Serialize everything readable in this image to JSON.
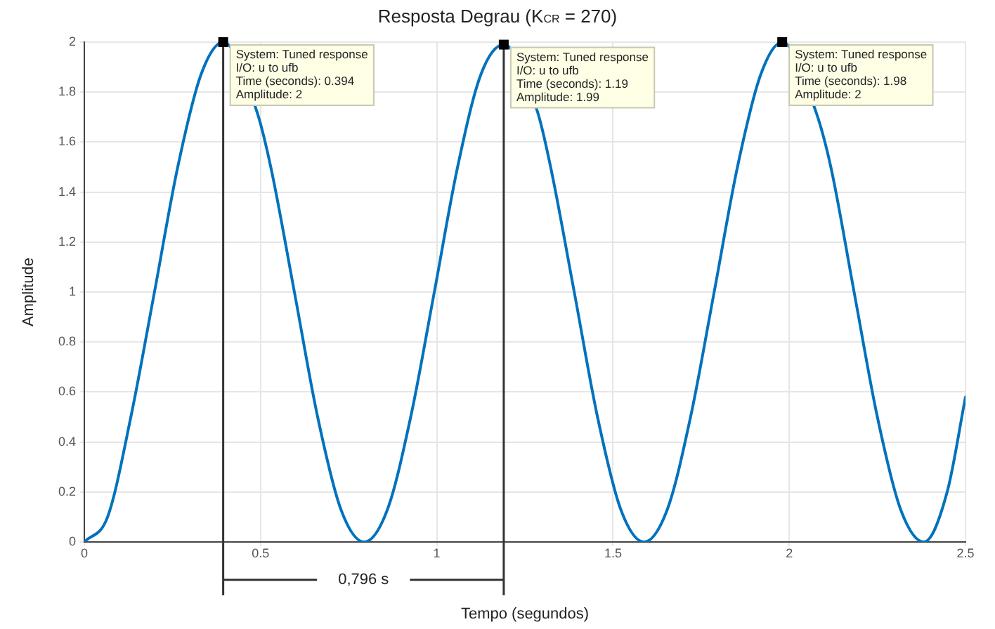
{
  "chart_data": {
    "type": "line",
    "title": "Resposta Degrau (K$_{CR}$ = 270)",
    "xlabel": "Tempo (segundos)",
    "ylabel": "Amplitude",
    "x": [
      0,
      0.066,
      0.132,
      0.199,
      0.265,
      0.331,
      0.394,
      0.49,
      0.529,
      0.596,
      0.662,
      0.728,
      0.794,
      0.86,
      0.926,
      0.993,
      1.059,
      1.125,
      1.19,
      1.286,
      1.323,
      1.39,
      1.456,
      1.522,
      1.588,
      1.654,
      1.72,
      1.787,
      1.853,
      1.919,
      1.98,
      2.076,
      2.118,
      2.184,
      2.25,
      2.316,
      2.382,
      2.448,
      2.5
    ],
    "series": [
      {
        "color": "#0072bd",
        "values": [
          0,
          0.1,
          0.5,
          1,
          1.5,
          1.87,
          2,
          1.72,
          1.5,
          1,
          0.5,
          0.13,
          0,
          0.13,
          0.5,
          1,
          1.5,
          1.87,
          1.99,
          1.72,
          1.5,
          1,
          0.5,
          0.13,
          0,
          0.13,
          0.5,
          1,
          1.5,
          1.87,
          2,
          1.72,
          1.5,
          1,
          0.5,
          0.13,
          0,
          0.2,
          0.58
        ]
      }
    ],
    "xlim": [
      0,
      2.5
    ],
    "xticks": [
      0,
      0.5,
      1,
      1.5,
      2,
      2.5
    ],
    "ylim": [
      0,
      2
    ],
    "yticks": [
      0,
      0.2,
      0.4,
      0.6,
      0.8,
      1,
      1.2,
      1.4,
      1.6,
      1.8,
      2
    ],
    "grid": true,
    "marker": "none",
    "line_style": "solid",
    "legend": false,
    "ref_lines": [
      {
        "axis": "x",
        "value": 0.394,
        "color": "#333333"
      },
      {
        "axis": "x",
        "value": 1.19,
        "color": "#333333"
      }
    ],
    "annotations": [
      {
        "text": "System: Tuned response\nI/O: u to ufb\nTime (seconds): 0.394\nAmplitude: 2",
        "x": 0.394,
        "y": 2
      },
      {
        "text": "System: Tuned response\nI/O: u to ufb\nTime (seconds): 1.19\nAmplitude: 1.99",
        "x": 1.19,
        "y": 1.99
      },
      {
        "text": "System: Tuned response\nI/O: u to ufb\nTime (seconds): 1.98\nAmplitude: 2",
        "x": 1.98,
        "y": 2
      },
      "0,796 s"
    ]
  }
}
